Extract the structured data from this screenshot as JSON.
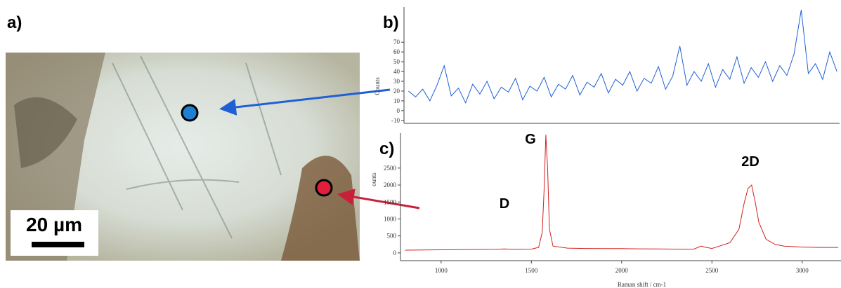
{
  "panel_labels": {
    "a": "a)",
    "b": "b)",
    "c": "c)"
  },
  "scale_bar": "20 µm",
  "chart_data": [
    {
      "type": "line",
      "y_label": "Counts",
      "color": "#1f5fd6",
      "x": [
        800,
        840,
        880,
        920,
        960,
        1000,
        1040,
        1080,
        1120,
        1160,
        1200,
        1240,
        1280,
        1320,
        1360,
        1400,
        1440,
        1480,
        1520,
        1560,
        1600,
        1640,
        1680,
        1720,
        1760,
        1800,
        1840,
        1880,
        1920,
        1960,
        2000,
        2040,
        2080,
        2120,
        2160,
        2200,
        2240,
        2280,
        2320,
        2360,
        2400,
        2440,
        2480,
        2520,
        2560,
        2600,
        2640,
        2680,
        2720,
        2760,
        2800,
        2840,
        2880,
        2920,
        2960,
        3000,
        3040,
        3080,
        3120,
        3160,
        3200
      ],
      "values": [
        20,
        14,
        22,
        10,
        26,
        46,
        15,
        23,
        8,
        27,
        17,
        30,
        12,
        24,
        19,
        33,
        11,
        25,
        20,
        34,
        14,
        27,
        22,
        36,
        16,
        29,
        24,
        38,
        18,
        32,
        26,
        40,
        20,
        33,
        28,
        45,
        22,
        35,
        66,
        26,
        40,
        30,
        48,
        24,
        42,
        32,
        55,
        28,
        44,
        34,
        50,
        30,
        46,
        36,
        58,
        103,
        38,
        48,
        32,
        60,
        40
      ],
      "xlim": [
        775,
        3215
      ],
      "ylim": [
        -13,
        106
      ],
      "yticks": [
        -10,
        0,
        10,
        20,
        30,
        40,
        50,
        60,
        70
      ]
    },
    {
      "type": "line",
      "x_label": "Raman shift / cm-1",
      "y_label": "ounts",
      "color": "#d42020",
      "annotations": [
        "G",
        "D",
        "2D"
      ],
      "x": [
        800,
        900,
        1000,
        1100,
        1200,
        1300,
        1350,
        1400,
        1500,
        1540,
        1560,
        1570,
        1580,
        1590,
        1600,
        1620,
        1700,
        1800,
        1900,
        2000,
        2100,
        2200,
        2300,
        2400,
        2440,
        2460,
        2500,
        2600,
        2650,
        2680,
        2700,
        2720,
        2740,
        2760,
        2800,
        2850,
        2900,
        3000,
        3100,
        3200
      ],
      "values": [
        80,
        85,
        90,
        95,
        100,
        105,
        115,
        105,
        110,
        160,
        600,
        1800,
        3480,
        2500,
        700,
        200,
        140,
        130,
        125,
        125,
        120,
        115,
        110,
        110,
        200,
        170,
        130,
        300,
        700,
        1500,
        1900,
        2000,
        1500,
        900,
        400,
        250,
        200,
        170,
        160,
        160
      ],
      "xlim": [
        775,
        3215
      ],
      "ylim": [
        -230,
        3530
      ],
      "xticks": [
        1000,
        1500,
        2000,
        2500,
        3000
      ],
      "yticks": [
        0,
        500,
        1000,
        1500,
        2000,
        2500
      ]
    }
  ]
}
